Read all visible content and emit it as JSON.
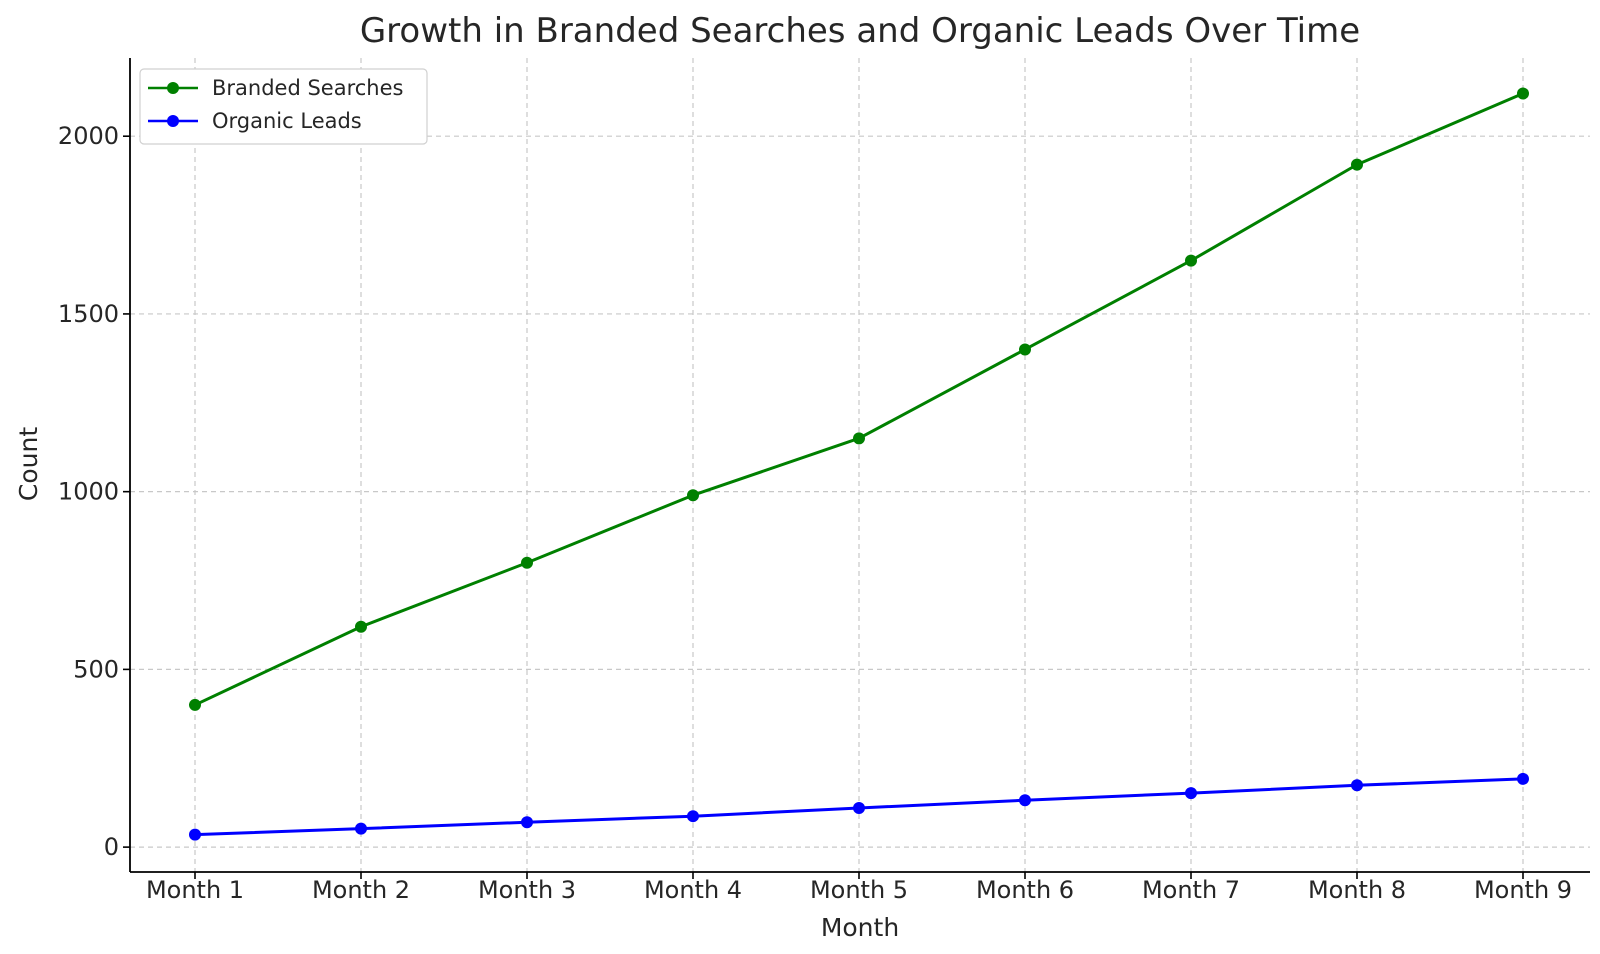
{
  "chart_data": {
    "type": "line",
    "title": "Growth in Branded Searches and Organic Leads Over Time",
    "xlabel": "Month",
    "ylabel": "Count",
    "categories": [
      "Month 1",
      "Month 2",
      "Month 3",
      "Month 4",
      "Month 5",
      "Month 6",
      "Month 7",
      "Month 8",
      "Month 9"
    ],
    "ylim": [
      -70,
      2220
    ],
    "yticks": [
      0,
      500,
      1000,
      1500,
      2000
    ],
    "grid": true,
    "legend_position": "top-left",
    "series": [
      {
        "name": "Branded Searches",
        "color": "#008000",
        "values": [
          400,
          620,
          800,
          990,
          1150,
          1400,
          1650,
          1920,
          2120
        ]
      },
      {
        "name": "Organic Leads",
        "color": "#0000ff",
        "values": [
          35,
          52,
          70,
          87,
          110,
          132,
          152,
          174,
          192
        ]
      }
    ]
  }
}
